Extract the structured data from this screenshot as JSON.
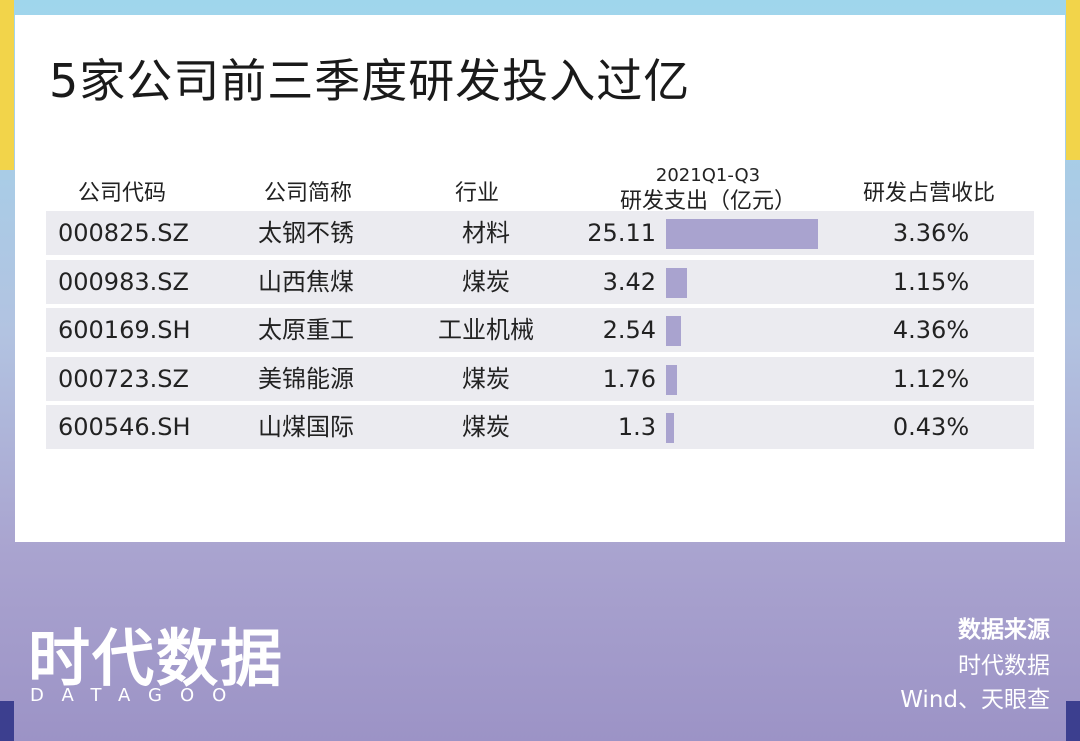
{
  "title": "5家公司前三季度研发投入过亿",
  "table": {
    "headers": {
      "code": "公司代码",
      "name": "公司简称",
      "industry": "行业",
      "rd_period": "2021Q1-Q3",
      "rd_label": "研发支出（亿元）",
      "ratio": "研发占营收比"
    },
    "rows": [
      {
        "code": "000825.SZ",
        "name": "太钢不锈",
        "industry": "材料",
        "rd": "25.11",
        "ratio": "3.36%"
      },
      {
        "code": "000983.SZ",
        "name": "山西焦煤",
        "industry": "煤炭",
        "rd": "3.42",
        "ratio": "1.15%"
      },
      {
        "code": "600169.SH",
        "name": "太原重工",
        "industry": "工业机械",
        "rd": "2.54",
        "ratio": "4.36%"
      },
      {
        "code": "000723.SZ",
        "name": "美锦能源",
        "industry": "煤炭",
        "rd": "1.76",
        "ratio": "1.12%"
      },
      {
        "code": "600546.SH",
        "name": "山煤国际",
        "industry": "煤炭",
        "rd": "1.3",
        "ratio": "0.43%"
      }
    ]
  },
  "chart_data": {
    "type": "bar",
    "categories": [
      "太钢不锈",
      "山西焦煤",
      "太原重工",
      "美锦能源",
      "山煤国际"
    ],
    "values": [
      25.11,
      3.42,
      2.54,
      1.76,
      1.3
    ],
    "title": "5家公司前三季度研发投入过亿",
    "ylabel": "研发支出（亿元）",
    "orientation": "horizontal",
    "ylim": [
      0,
      25.11
    ],
    "bar_color": "#a9a3cf"
  },
  "footer": {
    "logo_main": "时代数据",
    "logo_sub": "DATAGOO",
    "source_title": "数据来源",
    "source_1": "时代数据",
    "source_2": "Wind、天眼查"
  },
  "colors": {
    "bar": "#a9a3cf",
    "row_bg": "#ebebf0",
    "accent_yellow": "#f2d44a"
  }
}
